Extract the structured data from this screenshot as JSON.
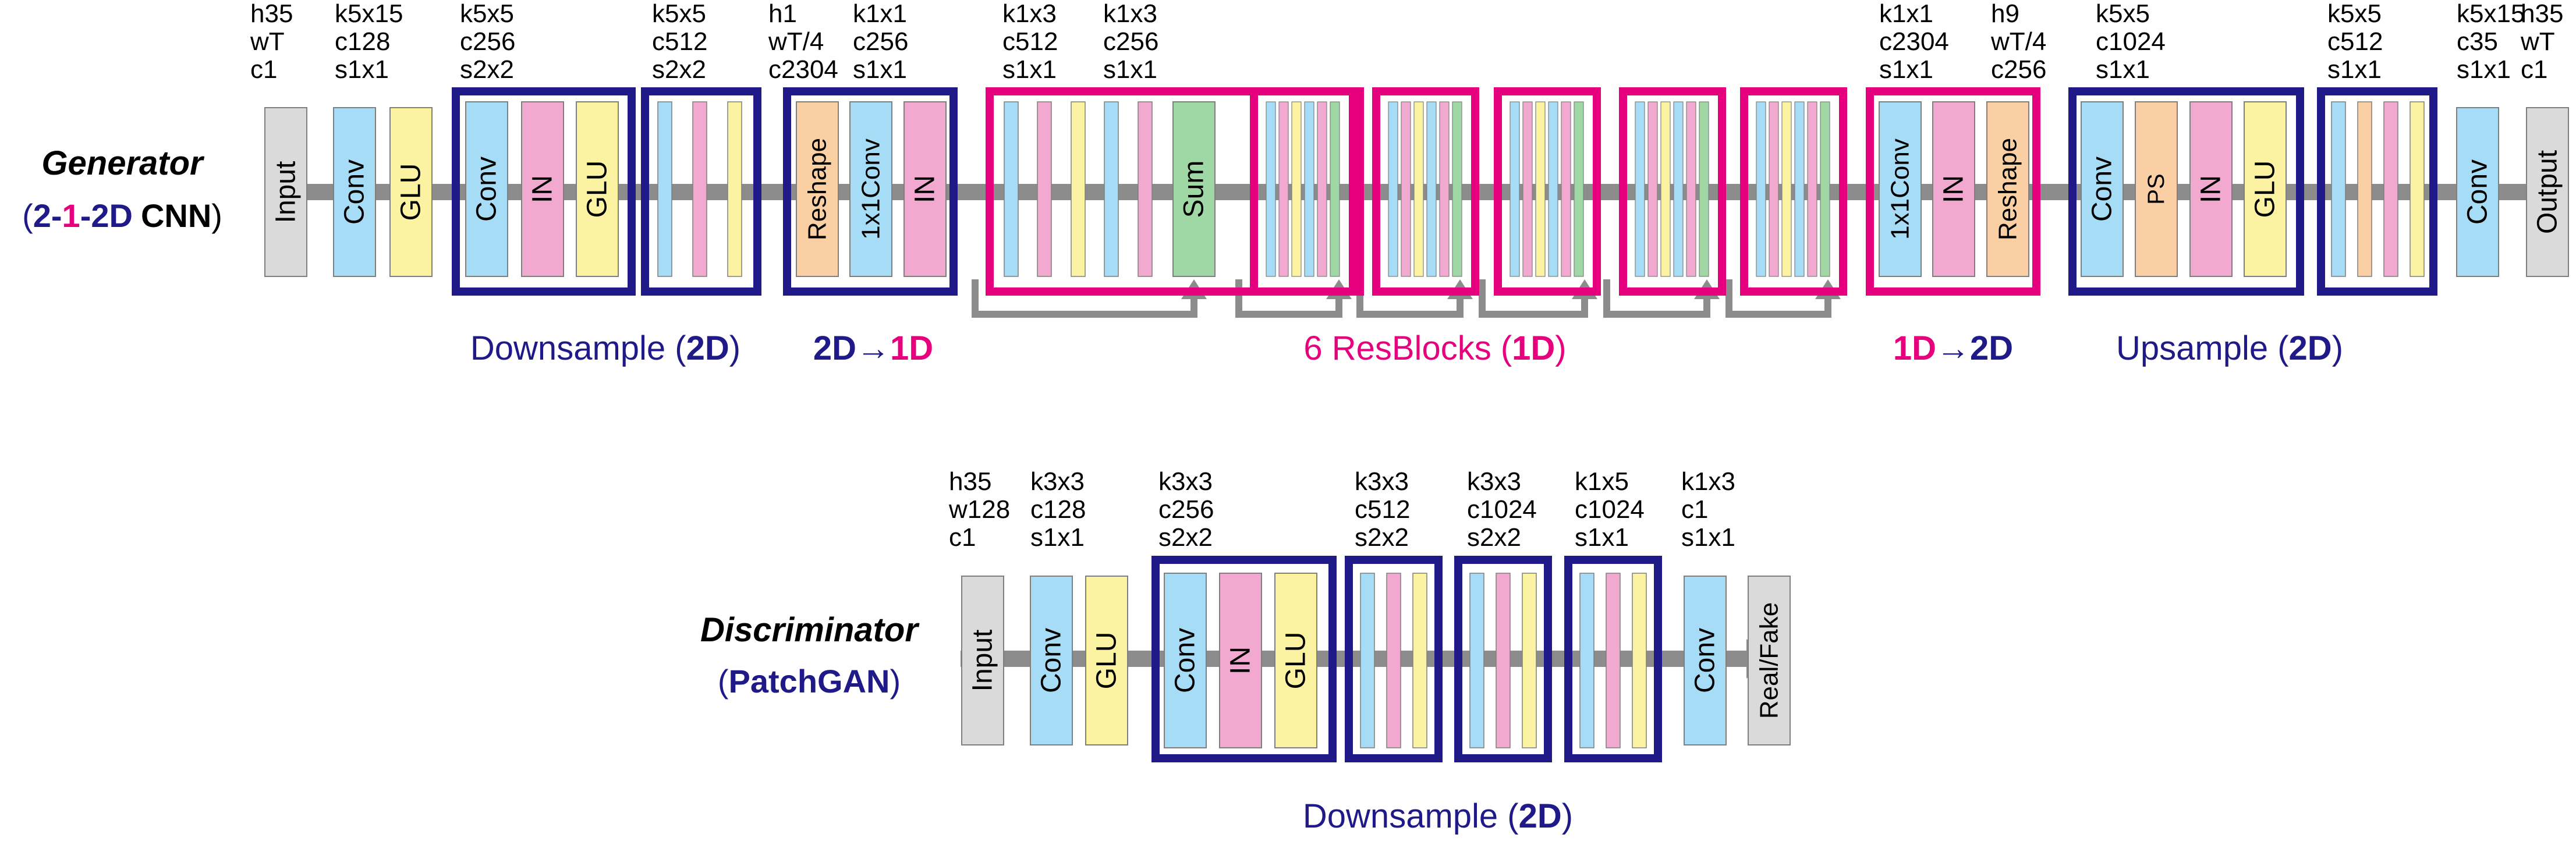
{
  "colors": {
    "navy": "#1f1a87",
    "magenta": "#e6007e",
    "conv": "#a6dcf5",
    "in": "#f2a9cf",
    "glu": "#fbf3a1",
    "reshape": "#f9cfa3",
    "ps": "#f9cfa3",
    "sum": "#9fd8a4",
    "io": "#dadada",
    "arrow": "#8c8c8c",
    "text": "#000000"
  },
  "generator": {
    "title": "Generator",
    "subtitle_open": "(",
    "sub_2a": "2",
    "sub_dash1": "-",
    "sub_1": "1",
    "sub_dash2": "-",
    "sub_2b": "2D",
    "sub_cnn": "CNN",
    "subtitle_close": ")",
    "params": [
      [
        "h35",
        "wT",
        "c1"
      ],
      [
        "k5x15",
        "c128",
        "s1x1"
      ],
      [
        "k5x5",
        "c256",
        "s2x2"
      ],
      [
        "k5x5",
        "c512",
        "s2x2"
      ],
      [
        "h1",
        "wT/4",
        "c2304"
      ],
      [
        "k1x1",
        "c256",
        "s1x1"
      ],
      [
        "k1x3",
        "c512",
        "s1x1"
      ],
      [
        "k1x3",
        "c256",
        "s1x1"
      ],
      [
        "k1x1",
        "c2304",
        "s1x1"
      ],
      [
        "h9",
        "wT/4",
        "c256"
      ],
      [
        "k5x5",
        "c1024",
        "s1x1"
      ],
      [
        "k5x5",
        "c512",
        "s1x1"
      ],
      [
        "k5x15",
        "c35",
        "s1x1"
      ],
      [
        "h35",
        "wT",
        "c1"
      ]
    ],
    "blocks": {
      "input": "Input",
      "conv": "Conv",
      "glu": "GLU",
      "in": "IN",
      "reshape": "Reshape",
      "conv1x1": "1x1Conv",
      "sum": "Sum",
      "ps": "PS",
      "output": "Output"
    },
    "groups": {
      "down_open": "Downsample (",
      "down_2d": "2D",
      "down_close": ")",
      "to1d_a": "2D",
      "to1d_arrow": "→",
      "to1d_b": "1D",
      "res_open": "6 ResBlocks (",
      "res_1d": "1D",
      "res_close": ")",
      "to2d_a": "1D",
      "to2d_arrow": "→",
      "to2d_b": "2D",
      "up_open": "Upsample (",
      "up_2d": "2D",
      "up_close": ")"
    }
  },
  "discriminator": {
    "title": "Discriminator",
    "subtitle_open": "(",
    "subtitle_name": "PatchGAN",
    "subtitle_close": ")",
    "params": [
      [
        "h35",
        "w128",
        "c1"
      ],
      [
        "k3x3",
        "c128",
        "s1x1"
      ],
      [
        "k3x3",
        "c256",
        "s2x2"
      ],
      [
        "k3x3",
        "c512",
        "s2x2"
      ],
      [
        "k3x3",
        "c1024",
        "s2x2"
      ],
      [
        "k1x5",
        "c1024",
        "s1x1"
      ],
      [
        "k1x3",
        "c1",
        "s1x1"
      ]
    ],
    "blocks": {
      "input": "Input",
      "conv": "Conv",
      "glu": "GLU",
      "in": "IN",
      "output": "Real/Fake"
    },
    "group_open": "Downsample (",
    "group_2d": "2D",
    "group_close": ")"
  }
}
